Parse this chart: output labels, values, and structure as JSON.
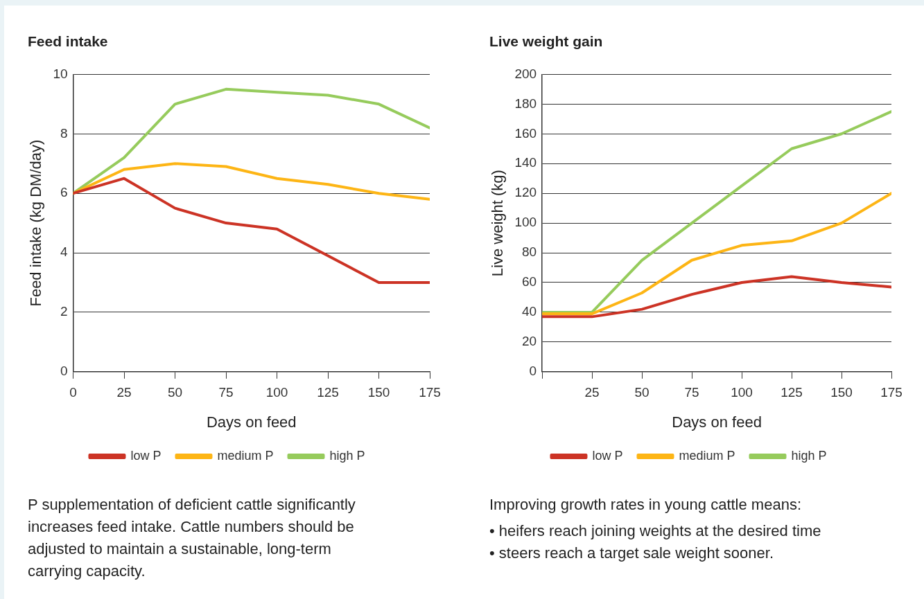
{
  "chart_data": [
    {
      "type": "line",
      "title": "Feed intake",
      "xlabel": "Days on feed",
      "ylabel": "Feed intake (kg DM/day)",
      "x": [
        0,
        25,
        50,
        75,
        100,
        125,
        150,
        175
      ],
      "series": [
        {
          "name": "low P",
          "color": "#cc3325",
          "values": [
            6,
            6.5,
            5.5,
            5.0,
            4.8,
            3.9,
            3.0,
            3.0
          ]
        },
        {
          "name": "medium P",
          "color": "#fdb515",
          "values": [
            6,
            6.8,
            7.0,
            6.9,
            6.5,
            6.3,
            6.0,
            5.8
          ]
        },
        {
          "name": "high P",
          "color": "#96cb5c",
          "values": [
            6,
            7.2,
            9.0,
            9.5,
            9.4,
            9.3,
            9.0,
            8.2
          ]
        }
      ],
      "xlim": [
        0,
        175
      ],
      "xticks": [
        0,
        25,
        50,
        75,
        100,
        125,
        150,
        175
      ],
      "ylim": [
        0,
        10
      ],
      "yticks": [
        0,
        2,
        4,
        6,
        8,
        10
      ],
      "grid": "y",
      "legend": "bottom",
      "marker": "none",
      "line_style": "solid",
      "annotations": [
        "P supplementation of deficient cattle significantly increases feed intake. Cattle numbers should be adjusted to maintain a sustainable, long-term carrying capacity."
      ]
    },
    {
      "type": "line",
      "title": "Live weight gain",
      "xlabel": "Days on feed",
      "ylabel": "Live weight (kg)",
      "x": [
        0,
        25,
        50,
        75,
        100,
        125,
        150,
        175
      ],
      "series": [
        {
          "name": "low P",
          "color": "#cc3325",
          "values": [
            37,
            37,
            42,
            52,
            60,
            64,
            60,
            57
          ]
        },
        {
          "name": "medium P",
          "color": "#fdb515",
          "values": [
            39,
            39,
            53,
            75,
            85,
            88,
            100,
            120
          ]
        },
        {
          "name": "high P",
          "color": "#96cb5c",
          "values": [
            40,
            40,
            75,
            100,
            125,
            150,
            160,
            175
          ]
        }
      ],
      "xlim": [
        0,
        175
      ],
      "xticks": [
        {
          "value": 0,
          "label": null
        },
        25,
        50,
        75,
        100,
        125,
        150,
        175
      ],
      "ylim": [
        0,
        200
      ],
      "yticks": [
        0,
        20,
        40,
        60,
        80,
        100,
        120,
        140,
        160,
        180,
        200
      ],
      "grid": "y",
      "legend": "bottom",
      "marker": "none",
      "line_style": "solid",
      "annotations": [
        "Improving growth rates in young cattle means:",
        "• heifers reach joining weights at the desired time",
        "• steers reach a target sale weight sooner."
      ]
    }
  ]
}
